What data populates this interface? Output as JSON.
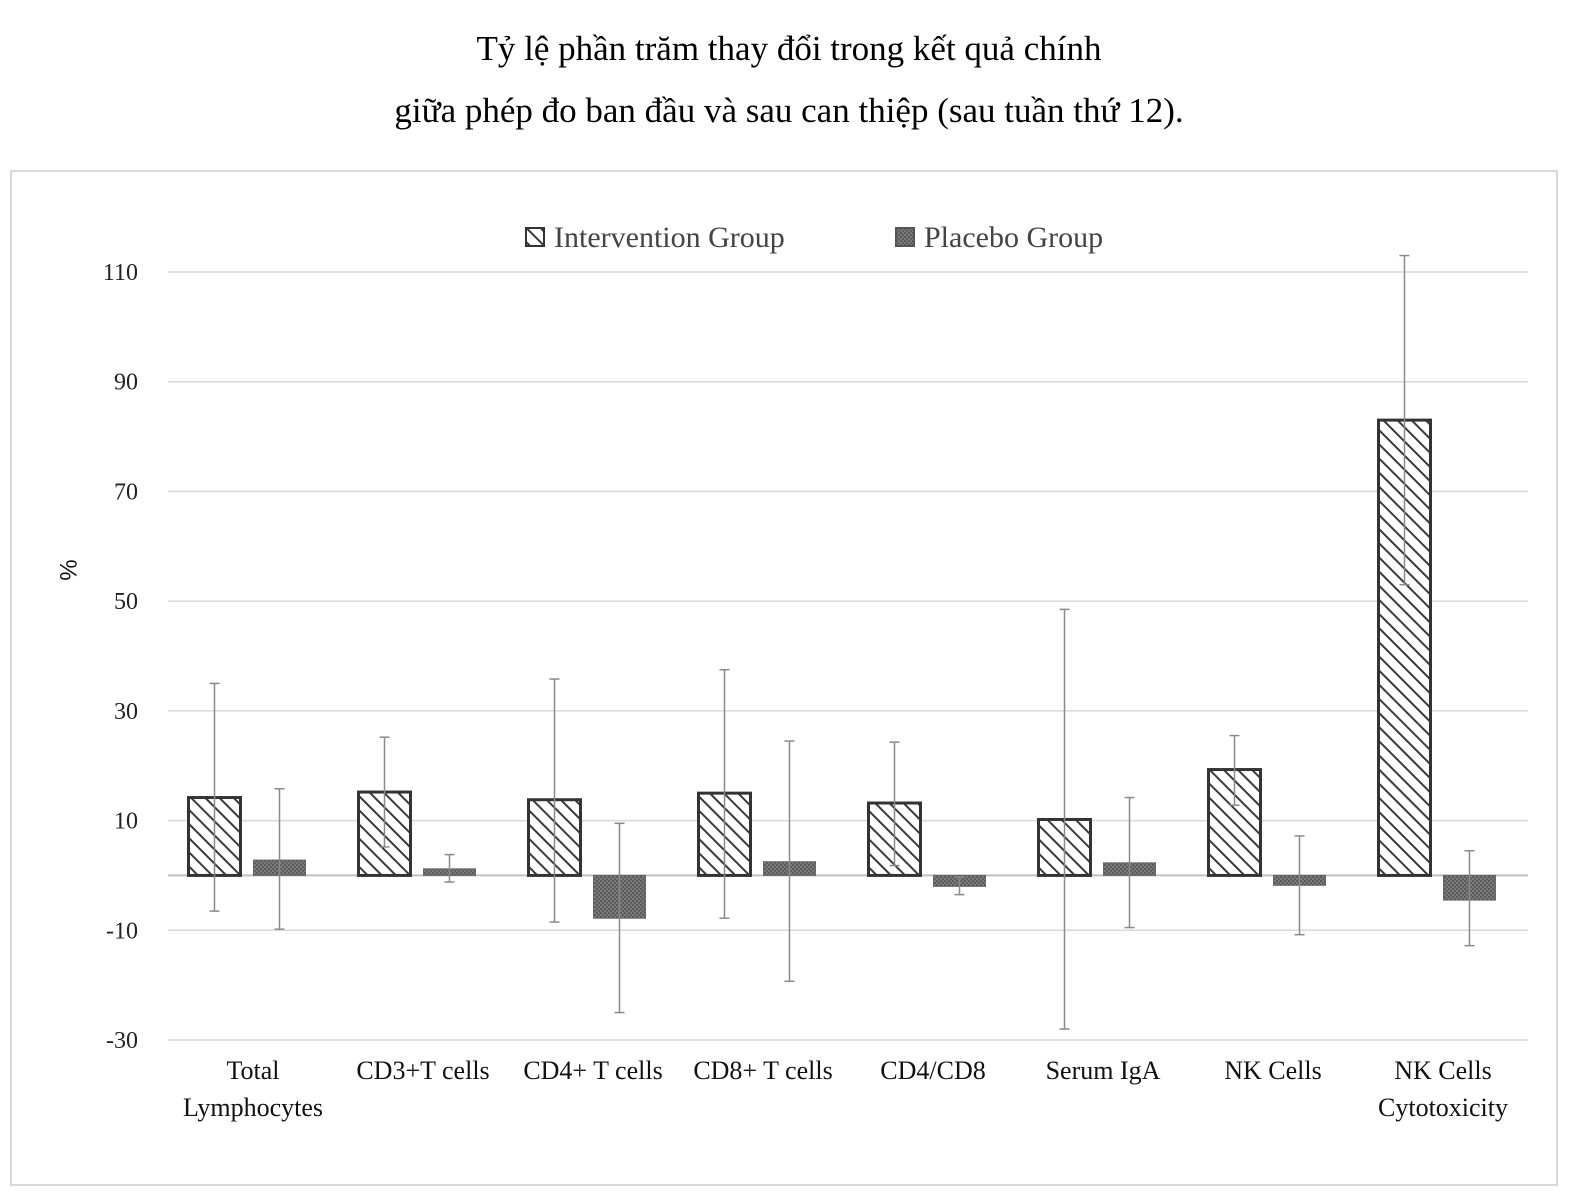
{
  "title": {
    "line1": "Tỷ lệ phần trăm thay đổi trong kết quả chính",
    "line2": "giữa phép đo ban đầu và sau can thiệp (sau tuần thứ 12)."
  },
  "chart_data": {
    "type": "bar",
    "title": "Tỷ lệ phần trăm thay đổi trong kết quả chính giữa phép đo ban đầu và sau can thiệp (sau tuần thứ 12).",
    "xlabel": "",
    "ylabel": "%",
    "ylim": [
      -30,
      110
    ],
    "yticks": [
      110,
      90,
      70,
      50,
      30,
      10,
      -10,
      -30
    ],
    "grid": true,
    "legend_position": "top-center",
    "categories": [
      [
        "Total",
        "Lymphocytes"
      ],
      [
        "CD3+T cells"
      ],
      [
        "CD4+ T cells"
      ],
      [
        "CD8+ T cells"
      ],
      [
        "CD4/CD8"
      ],
      [
        "Serum IgA"
      ],
      [
        "NK Cells"
      ],
      [
        "NK Cells",
        "Cytotoxicity"
      ]
    ],
    "series": [
      {
        "name": "Intervention Group",
        "pattern": "hatched",
        "color": "#333333",
        "values": [
          14.2,
          15.2,
          13.8,
          15.0,
          13.2,
          10.2,
          19.3,
          83.0
        ],
        "error_low": [
          -6.5,
          5.2,
          -8.5,
          -7.8,
          1.8,
          -28.0,
          12.8,
          53.0
        ],
        "error_high": [
          35.0,
          25.2,
          35.8,
          37.5,
          24.3,
          48.5,
          25.5,
          113.0
        ]
      },
      {
        "name": "Placebo Group",
        "pattern": "solid",
        "color": "#6a6a6a",
        "values": [
          2.8,
          1.2,
          -7.8,
          2.5,
          -2.0,
          2.3,
          -1.8,
          -4.5
        ],
        "error_low": [
          -9.8,
          -1.2,
          -25.0,
          -19.3,
          -3.5,
          -9.5,
          -10.8,
          -12.8
        ],
        "error_high": [
          15.8,
          3.8,
          9.5,
          24.5,
          -0.3,
          14.2,
          7.2,
          4.5
        ]
      }
    ]
  }
}
